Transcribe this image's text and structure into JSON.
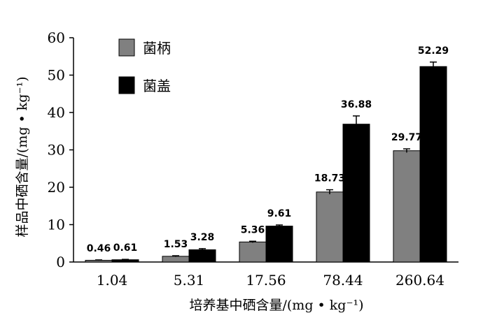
{
  "chart_data": {
    "type": "bar",
    "categories": [
      "1.04",
      "5.31",
      "17.56",
      "78.44",
      "260.64"
    ],
    "series": [
      {
        "name": "菌柄",
        "values": [
          0.46,
          1.53,
          5.36,
          18.73,
          29.77
        ],
        "errors": [
          0.1,
          0.15,
          0.2,
          0.6,
          0.5
        ],
        "color": "#808080"
      },
      {
        "name": "菌盖",
        "values": [
          0.61,
          3.28,
          9.61,
          36.88,
          52.29
        ],
        "errors": [
          0.1,
          0.3,
          0.3,
          2.2,
          1.2
        ],
        "color": "#000000"
      }
    ],
    "value_labels": [
      [
        "0.46",
        "1.53",
        "5.36",
        "18.73",
        "29.77"
      ],
      [
        "0.61",
        "3.28",
        "9.61",
        "36.88",
        "52.29"
      ]
    ],
    "title": "",
    "xlabel": "培养基中硒含量/(mg • kg⁻¹)",
    "ylabel": "样品中硒含量/(mg • kg⁻¹)",
    "ylim": [
      0,
      60
    ],
    "yticks": [
      "0",
      "10",
      "20",
      "30",
      "40",
      "50",
      "60"
    ],
    "grid": false,
    "legend_position": "top-left"
  }
}
